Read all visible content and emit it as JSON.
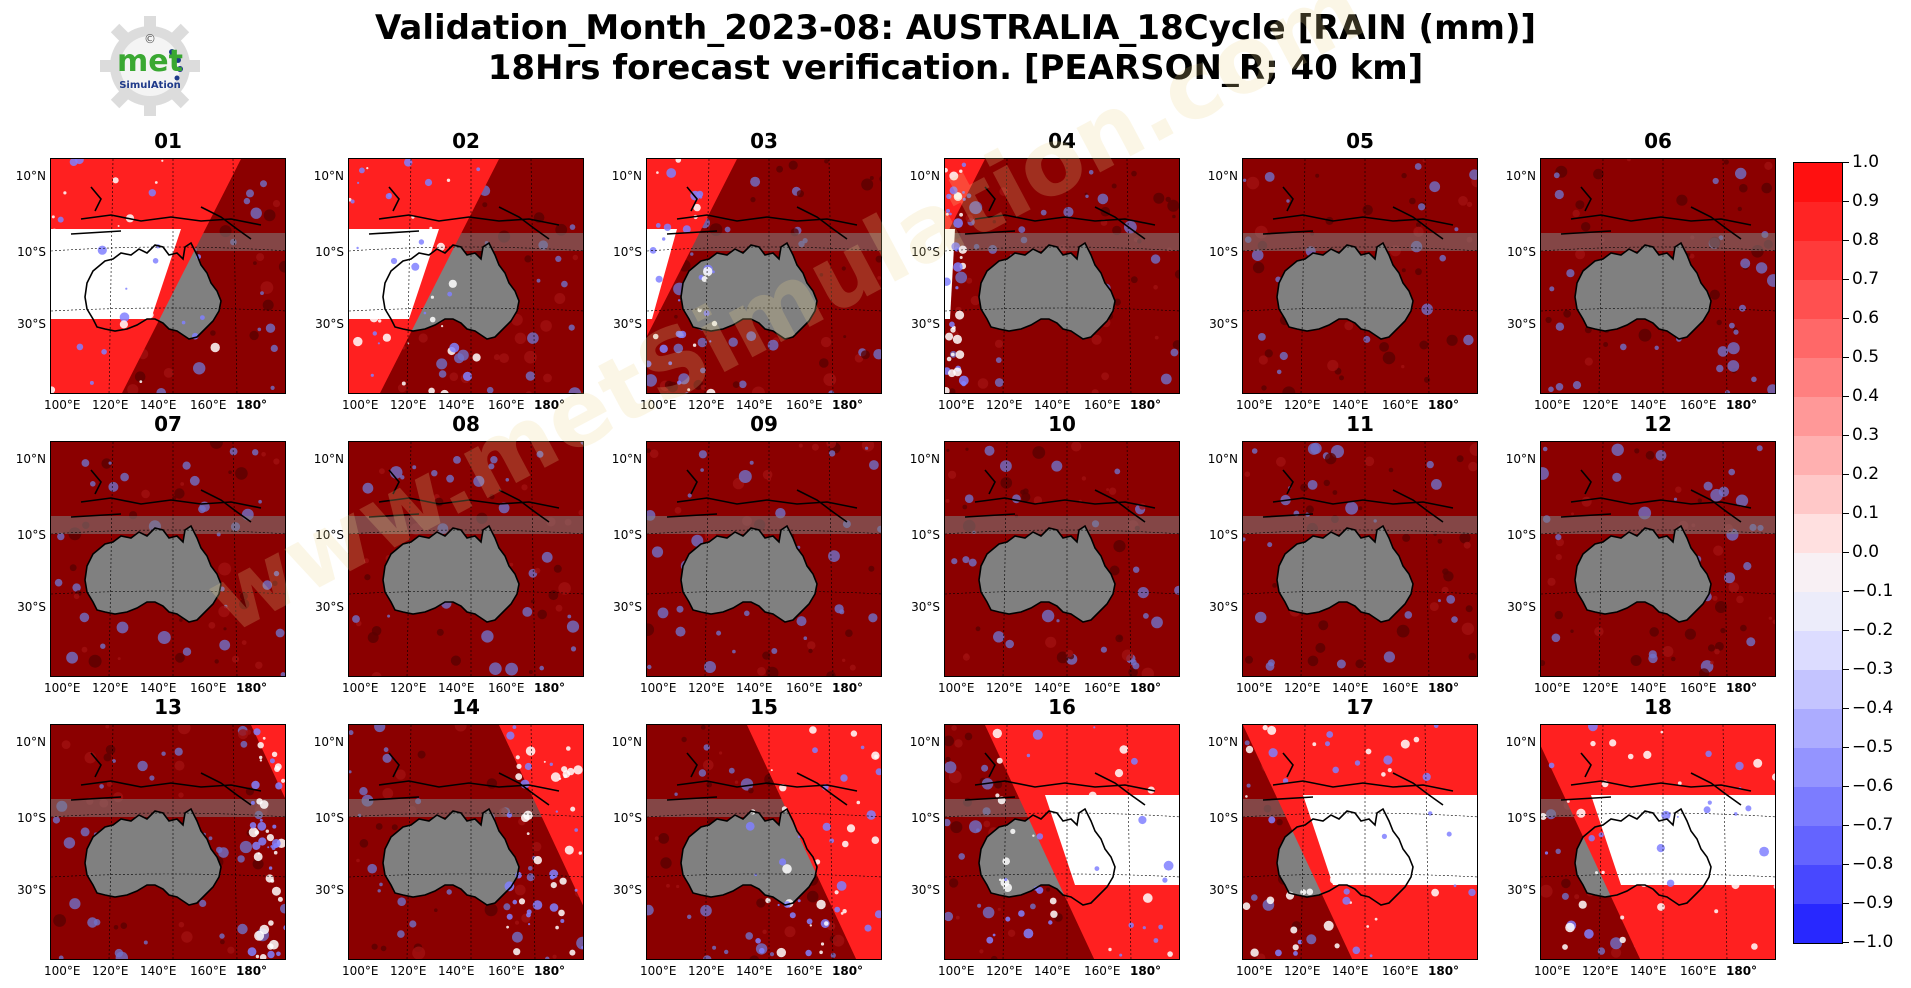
{
  "title_line1": "Validation_Month_2023-08: AUSTRALIA_18Cycle [RAIN (mm)]",
  "title_line2": "18Hrs forecast verification.  [PEARSON_R; 40 km]",
  "logo": {
    "word": "met",
    "sub": "SimulAtion",
    "mark": "©"
  },
  "watermark": "www.metSimulation.com",
  "lat_labels": [
    "10°N",
    "10°S",
    "30°S"
  ],
  "lon_labels": [
    "100°E",
    "120°E",
    "140°E",
    "160°E",
    "180°"
  ],
  "panels": [
    {
      "label": "01",
      "wedge": "left-red"
    },
    {
      "label": "02",
      "wedge": "left-red"
    },
    {
      "label": "03",
      "wedge": "left-red"
    },
    {
      "label": "04",
      "wedge": "left-red"
    },
    {
      "label": "05",
      "wedge": "none"
    },
    {
      "label": "06",
      "wedge": "none"
    },
    {
      "label": "07",
      "wedge": "none"
    },
    {
      "label": "08",
      "wedge": "none"
    },
    {
      "label": "09",
      "wedge": "none"
    },
    {
      "label": "10",
      "wedge": "none"
    },
    {
      "label": "11",
      "wedge": "none"
    },
    {
      "label": "12",
      "wedge": "none"
    },
    {
      "label": "13",
      "wedge": "right-red"
    },
    {
      "label": "14",
      "wedge": "right-red"
    },
    {
      "label": "15",
      "wedge": "right-red"
    },
    {
      "label": "16",
      "wedge": "right-red"
    },
    {
      "label": "17",
      "wedge": "right-red"
    },
    {
      "label": "18",
      "wedge": "right-red"
    }
  ],
  "colorbar": {
    "ticks": [
      "1.0",
      "0.9",
      "0.8",
      "0.7",
      "0.6",
      "0.5",
      "0.4",
      "0.3",
      "0.2",
      "0.1",
      "0.0",
      "−0.1",
      "−0.2",
      "−0.3",
      "−0.4",
      "−0.5",
      "−0.6",
      "−0.7",
      "−0.8",
      "−0.9",
      "−1.0"
    ],
    "colors": [
      "#ff1010",
      "#ff2424",
      "#ff3a3a",
      "#ff5050",
      "#ff6868",
      "#ff8080",
      "#ff9898",
      "#ffb0b0",
      "#ffc8c8",
      "#ffe0e0",
      "#f8f0f4",
      "#ececfa",
      "#dcdcff",
      "#c4c4ff",
      "#acacff",
      "#9494ff",
      "#7c7cff",
      "#6464ff",
      "#4848ff",
      "#2828ff"
    ]
  },
  "map_colors": {
    "dark": "#8b0000",
    "gray": "#808080",
    "red": "#ff2020",
    "white": "#ffffff",
    "blue": "#3030c8"
  }
}
